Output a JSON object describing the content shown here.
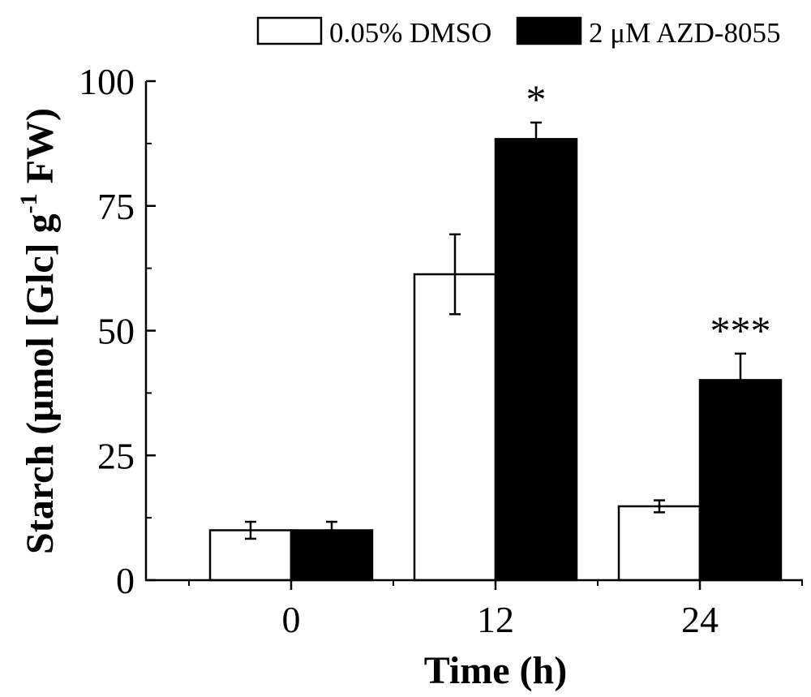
{
  "chart_data": {
    "type": "bar",
    "title": "",
    "xlabel": "Time (h)",
    "ylabel": "Starch (μmol [Glc] g-1 FW)",
    "ylabel_parts": {
      "main": "Starch (μmol [Glc] g",
      "sup": "-1",
      "tail": " FW)"
    },
    "categories": [
      "0",
      "12",
      "24"
    ],
    "ylim": [
      0,
      100
    ],
    "yticks": [
      0,
      25,
      50,
      75,
      100
    ],
    "legend_position": "top-right",
    "series": [
      {
        "name": "0.05% DMSO",
        "color": "#ffffff",
        "values": [
          10.0,
          61.3,
          14.8
        ],
        "errors": [
          1.7,
          8.0,
          1.2
        ]
      },
      {
        "name": "2 μM AZD-8055",
        "color": "#000000",
        "values": [
          10.0,
          88.4,
          40.1
        ],
        "errors": [
          1.7,
          3.3,
          5.3
        ]
      }
    ],
    "significance": [
      "",
      "*",
      "***"
    ]
  }
}
